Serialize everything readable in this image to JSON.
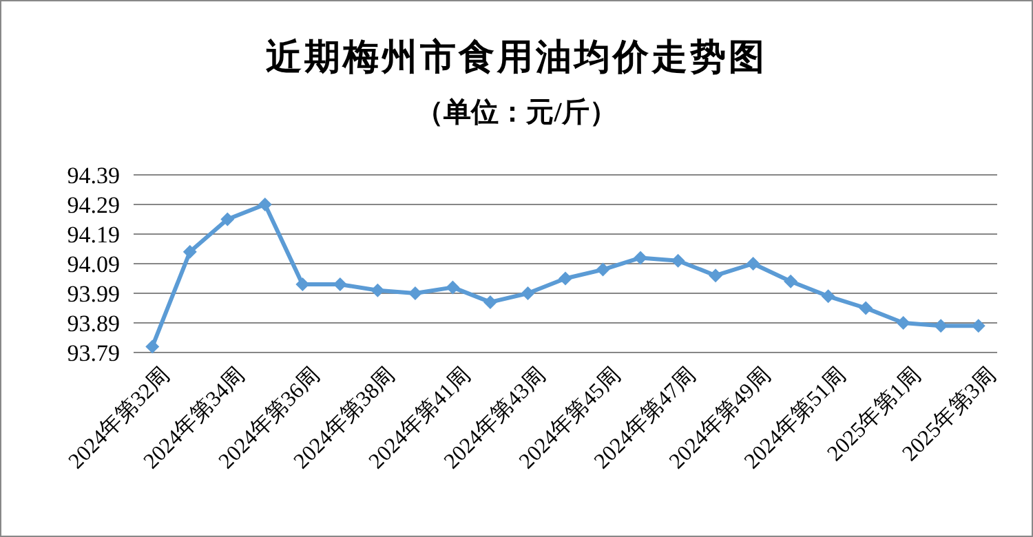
{
  "chart_data": {
    "type": "line",
    "title": "近期梅州市食用油均价走势图",
    "subtitle": "（单位：元/斤）",
    "categories": [
      "2024年第32周",
      null,
      "2024年第34周",
      null,
      "2024年第36周",
      null,
      "2024年第38周",
      null,
      "2024年第41周",
      null,
      "2024年第43周",
      null,
      "2024年第45周",
      null,
      "2024年第47周",
      null,
      "2024年第49周",
      null,
      "2024年第51周",
      null,
      "2025年第1周",
      null,
      "2025年第3周"
    ],
    "series": [
      {
        "color": "#5b9bd5",
        "values": [
          93.81,
          94.13,
          94.24,
          94.29,
          94.02,
          94.02,
          94.0,
          93.99,
          94.01,
          93.96,
          93.99,
          94.04,
          94.07,
          94.11,
          94.1,
          94.05,
          94.09,
          94.03,
          93.98,
          93.94,
          93.89,
          93.88,
          93.88
        ]
      }
    ],
    "ylim": [
      93.79,
      94.39
    ],
    "yticks": [
      93.79,
      93.89,
      93.99,
      94.09,
      94.19,
      94.29,
      94.39
    ],
    "grid": "y",
    "marker": "diamond",
    "line_style": "solid"
  }
}
